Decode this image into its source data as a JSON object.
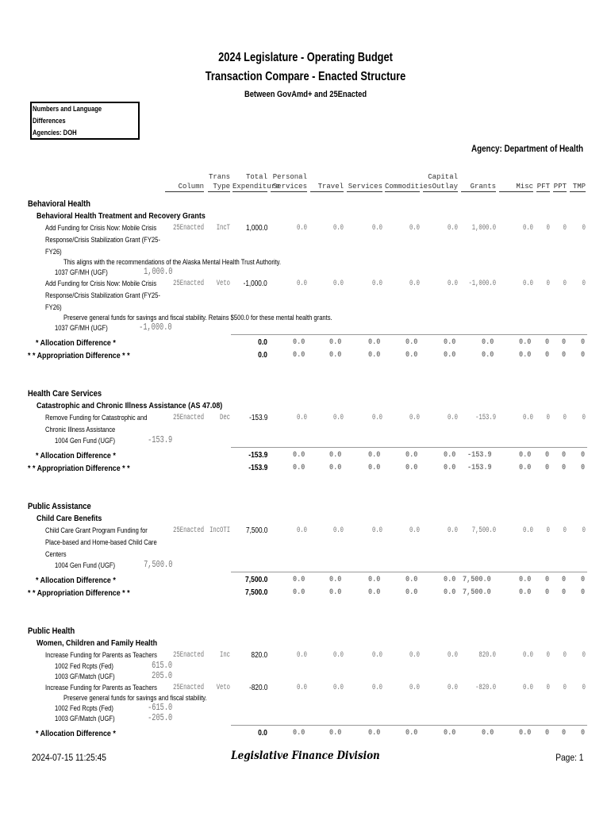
{
  "header": {
    "title_line1": "2024 Legislature - Operating Budget",
    "title_line2": "Transaction Compare - Enacted Structure",
    "subtitle": "Between GovAmd+ and 25Enacted",
    "box_lines": [
      "Numbers and Language",
      "Differences",
      "Agencies: DOH"
    ],
    "agency": "Agency: Department of Health"
  },
  "columns": [
    {
      "line1": "",
      "line2": "Column"
    },
    {
      "line1": "Trans",
      "line2": "Type"
    },
    {
      "line1": "Total",
      "line2": "Expenditure"
    },
    {
      "line1": "Personal",
      "line2": "Services"
    },
    {
      "line1": "",
      "line2": "Travel"
    },
    {
      "line1": "",
      "line2": "Services"
    },
    {
      "line1": "",
      "line2": "Commodities"
    },
    {
      "line1": "Capital",
      "line2": "Outlay"
    },
    {
      "line1": "",
      "line2": "Grants"
    },
    {
      "line1": "",
      "line2": "Misc"
    },
    {
      "line1": "",
      "line2": "PFT"
    },
    {
      "line1": "",
      "line2": "PPT"
    },
    {
      "line1": "",
      "line2": "TMP"
    }
  ],
  "allocation_label": "* Allocation Difference *",
  "appropriation_label": "* * Appropriation Difference * *",
  "sections": [
    {
      "title": "Behavioral Health",
      "subsections": [
        {
          "title": "Behavioral Health Treatment and Recovery Grants",
          "items": [
            {
              "description": "Add Funding for Crisis Now: Mobile Crisis Response/Crisis Stabilization Grant (FY25-FY26)",
              "column": "25Enacted",
              "trans_type": "IncT",
              "values": [
                "1,000.0",
                "0.0",
                "0.0",
                "0.0",
                "0.0",
                "0.0",
                "1,000.0",
                "0.0",
                "0",
                "0",
                "0"
              ],
              "note": "This aligns with the recommendations of the Alaska Mental Health Trust Authority.",
              "funds": [
                {
                  "name": "1037 GF/MH (UGF)",
                  "amount": "1,000.0"
                }
              ]
            },
            {
              "description": "Add Funding for Crisis Now: Mobile Crisis Response/Crisis Stabilization Grant (FY25-FY26)",
              "column": "25Enacted",
              "trans_type": "Veto",
              "values": [
                "-1,000.0",
                "0.0",
                "0.0",
                "0.0",
                "0.0",
                "0.0",
                "-1,000.0",
                "0.0",
                "0",
                "0",
                "0"
              ],
              "note": "Preserve general funds for savings and fiscal stability. Retains $500.0 for these mental health grants.",
              "funds": [
                {
                  "name": "1037 GF/MH (UGF)",
                  "amount": "-1,000.0"
                }
              ]
            }
          ],
          "allocation": [
            "0.0",
            "0.0",
            "0.0",
            "0.0",
            "0.0",
            "0.0",
            "0.0",
            "0.0",
            "0",
            "0",
            "0"
          ]
        }
      ],
      "appropriation": [
        "0.0",
        "0.0",
        "0.0",
        "0.0",
        "0.0",
        "0.0",
        "0.0",
        "0.0",
        "0",
        "0",
        "0"
      ]
    },
    {
      "title": "Health Care Services",
      "subsections": [
        {
          "title": "Catastrophic and Chronic Illness Assistance (AS 47.08)",
          "items": [
            {
              "description": "Remove Funding for Catastrophic and Chronic Illness Assistance",
              "column": "25Enacted",
              "trans_type": "Dec",
              "values": [
                "-153.9",
                "0.0",
                "0.0",
                "0.0",
                "0.0",
                "0.0",
                "-153.9",
                "0.0",
                "0",
                "0",
                "0"
              ],
              "note": "",
              "funds": [
                {
                  "name": "1004 Gen Fund (UGF)",
                  "amount": "-153.9"
                }
              ]
            }
          ],
          "allocation": [
            "-153.9",
            "0.0",
            "0.0",
            "0.0",
            "0.0",
            "0.0",
            "-153.9",
            "0.0",
            "0",
            "0",
            "0"
          ]
        }
      ],
      "appropriation": [
        "-153.9",
        "0.0",
        "0.0",
        "0.0",
        "0.0",
        "0.0",
        "-153.9",
        "0.0",
        "0",
        "0",
        "0"
      ]
    },
    {
      "title": "Public Assistance",
      "subsections": [
        {
          "title": "Child Care Benefits",
          "items": [
            {
              "description": "Child Care Grant Program Funding for Place-based and Home-based Child Care Centers",
              "column": "25Enacted",
              "trans_type": "IncOTI",
              "values": [
                "7,500.0",
                "0.0",
                "0.0",
                "0.0",
                "0.0",
                "0.0",
                "7,500.0",
                "0.0",
                "0",
                "0",
                "0"
              ],
              "note": "",
              "funds": [
                {
                  "name": "1004 Gen Fund (UGF)",
                  "amount": "7,500.0"
                }
              ]
            }
          ],
          "allocation": [
            "7,500.0",
            "0.0",
            "0.0",
            "0.0",
            "0.0",
            "0.0",
            "7,500.0",
            "0.0",
            "0",
            "0",
            "0"
          ]
        }
      ],
      "appropriation": [
        "7,500.0",
        "0.0",
        "0.0",
        "0.0",
        "0.0",
        "0.0",
        "7,500.0",
        "0.0",
        "0",
        "0",
        "0"
      ]
    },
    {
      "title": "Public Health",
      "subsections": [
        {
          "title": "Women, Children and Family Health",
          "items": [
            {
              "description": "Increase Funding for Parents as Teachers",
              "column": "25Enacted",
              "trans_type": "Inc",
              "values": [
                "820.0",
                "0.0",
                "0.0",
                "0.0",
                "0.0",
                "0.0",
                "820.0",
                "0.0",
                "0",
                "0",
                "0"
              ],
              "note": "",
              "funds": [
                {
                  "name": "1002 Fed Rcpts (Fed)",
                  "amount": "615.0"
                },
                {
                  "name": "1003 GF/Match (UGF)",
                  "amount": "205.0"
                }
              ]
            },
            {
              "description": "Increase Funding for Parents as Teachers",
              "column": "25Enacted",
              "trans_type": "Veto",
              "values": [
                "-820.0",
                "0.0",
                "0.0",
                "0.0",
                "0.0",
                "0.0",
                "-820.0",
                "0.0",
                "0",
                "0",
                "0"
              ],
              "note": "Preserve general funds for savings and fiscal stability.",
              "funds": [
                {
                  "name": "1002 Fed Rcpts (Fed)",
                  "amount": "-615.0"
                },
                {
                  "name": "1003 GF/Match (UGF)",
                  "amount": "-205.0"
                }
              ]
            }
          ],
          "allocation": [
            "0.0",
            "0.0",
            "0.0",
            "0.0",
            "0.0",
            "0.0",
            "0.0",
            "0.0",
            "0",
            "0",
            "0"
          ]
        }
      ]
    }
  ],
  "footer": {
    "timestamp": "2024-07-15 11:25:45",
    "division": "Legislative Finance Division",
    "page": "Page: 1"
  }
}
